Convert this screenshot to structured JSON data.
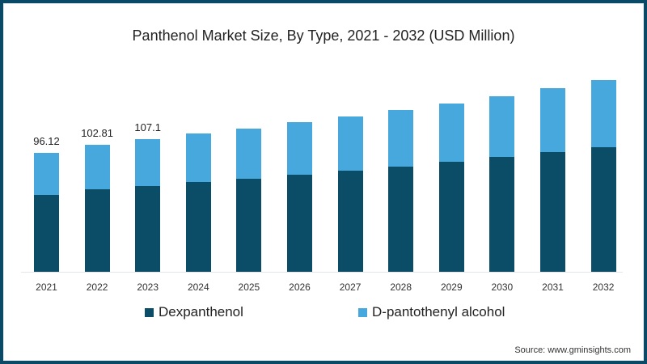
{
  "chart_data": {
    "type": "bar",
    "stacked": true,
    "title": "Panthenol Market Size, By Type, 2021 - 2032 (USD Million)",
    "xlabel": "",
    "ylabel": "",
    "categories": [
      "2021",
      "2022",
      "2023",
      "2024",
      "2025",
      "2026",
      "2027",
      "2028",
      "2029",
      "2030",
      "2031",
      "2032"
    ],
    "series": [
      {
        "name": "Dexpanthenol",
        "color": "#0b4d66",
        "values": [
          62.1,
          66.7,
          69.3,
          72.6,
          75.2,
          78.5,
          81.8,
          85.0,
          88.9,
          92.9,
          96.8,
          100.7
        ]
      },
      {
        "name": "D-pantothenyl alcohol",
        "color": "#47a8de",
        "values": [
          34.02,
          36.11,
          37.8,
          39.2,
          40.6,
          42.5,
          43.8,
          45.8,
          47.1,
          49.0,
          51.6,
          54.3
        ]
      }
    ],
    "totals": [
      96.12,
      102.81,
      107.1,
      111.8,
      115.8,
      121.0,
      125.6,
      130.8,
      136.0,
      141.9,
      148.4,
      155.0
    ],
    "data_labels": {
      "2021": "96.12",
      "2022": "102.81",
      "2023": "107.1"
    },
    "grid": false,
    "legend_position": "bottom",
    "source": "Source: www.gminsights.com"
  },
  "title": "Panthenol Market Size, By Type, 2021 - 2032 (USD Million)",
  "legend": {
    "dex": "Dexpanthenol",
    "alc": "D-pantothenyl alcohol"
  },
  "source": "Source: www.gminsights.com",
  "labels": [
    "96.12",
    "102.81",
    "107.1"
  ]
}
